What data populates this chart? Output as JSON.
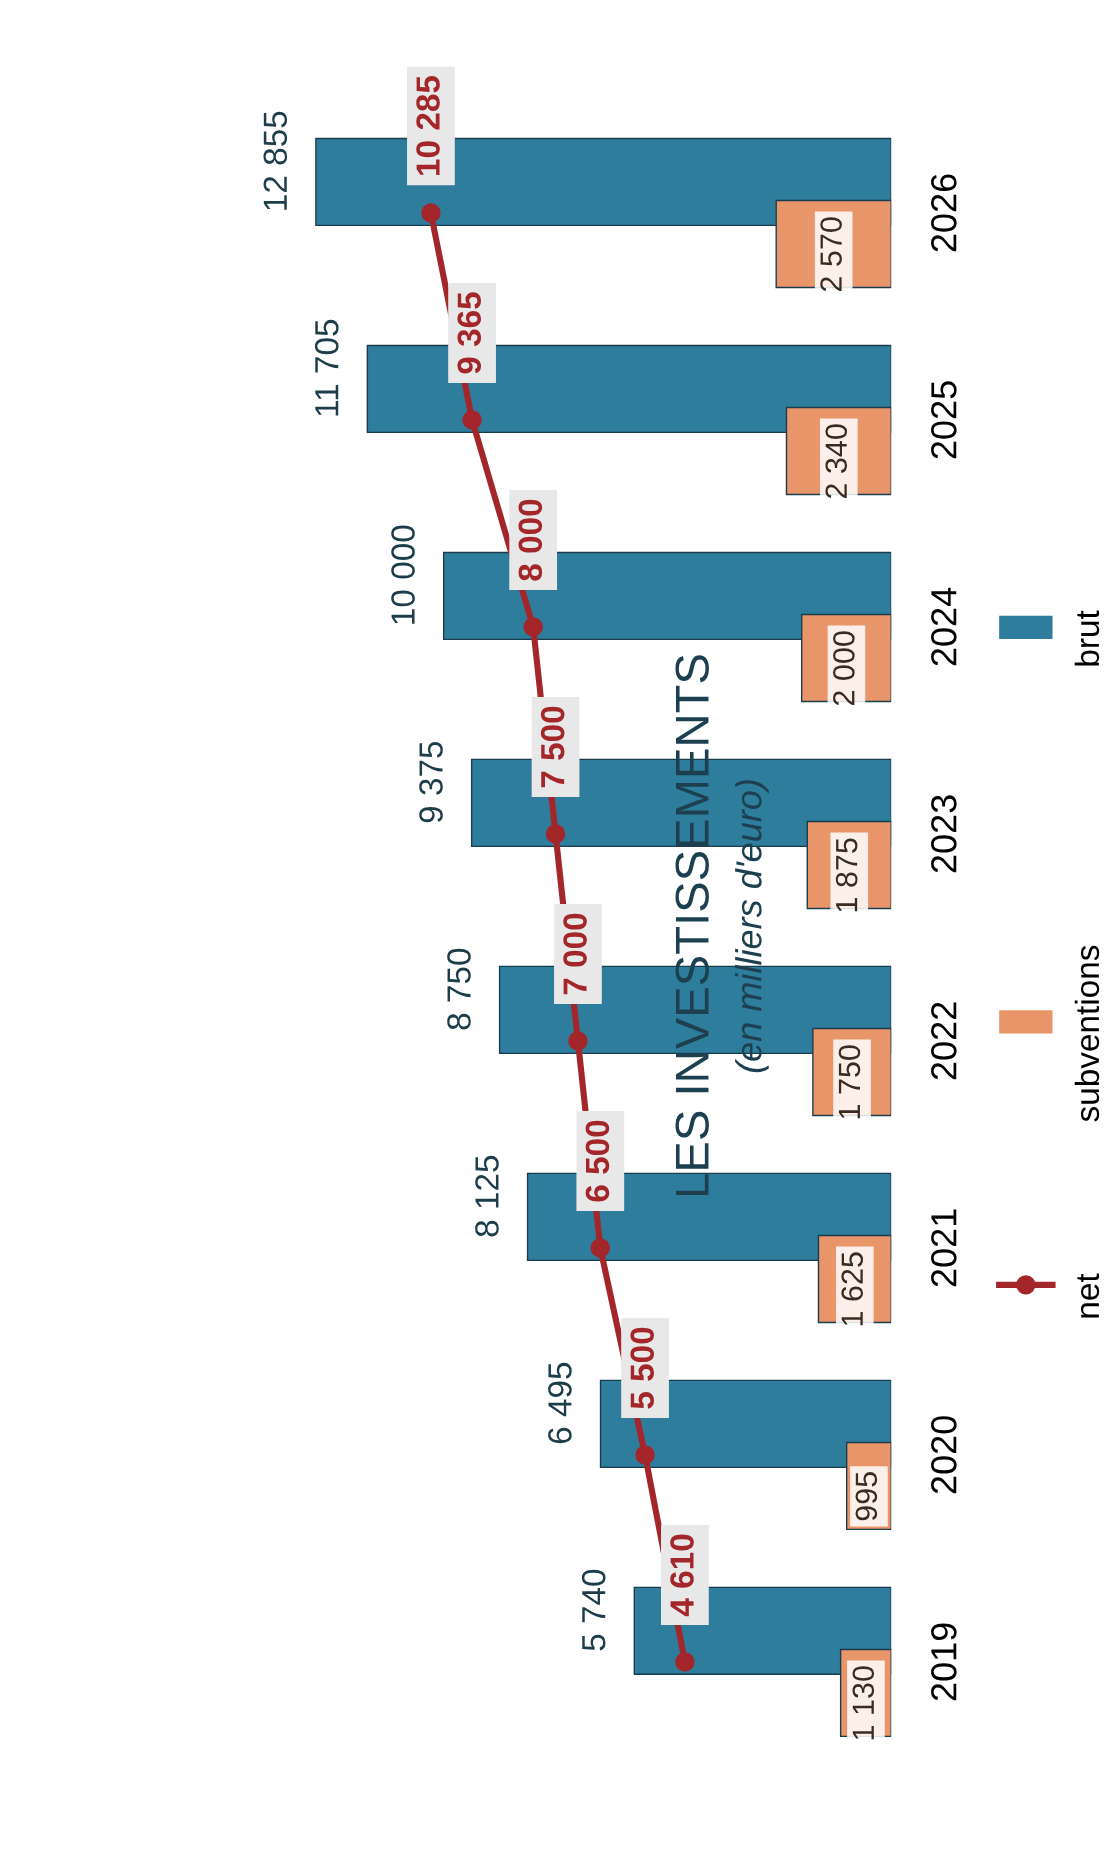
{
  "chart_data": {
    "type": "bar",
    "orientation": "horizontal",
    "title": "LES INVESTISSEMENTS",
    "subtitle": "(en milliers d'euro)",
    "categories": [
      "2026",
      "2025",
      "2024",
      "2023",
      "2022",
      "2021",
      "2020",
      "2019"
    ],
    "tick_labels": "y",
    "grid": false,
    "legend": "bottom right",
    "series": [
      {
        "name": "brut",
        "color": "#2e7d9c",
        "values": [
          12855,
          11705,
          10000,
          9375,
          8750,
          8125,
          6495,
          5740
        ],
        "value_labels": [
          "12 855",
          "11 705",
          "10 000",
          "9 375",
          "8 750",
          "8 125",
          "6 495",
          "5 740"
        ]
      },
      {
        "name": "subventions",
        "color": "#e8956a",
        "values": [
          2570,
          2340,
          2000,
          1875,
          1750,
          1625,
          995,
          1130
        ],
        "value_labels": [
          "2 570",
          "2 340",
          "2 000",
          "1 875",
          "1 750",
          "1 625",
          "995",
          "1 130"
        ]
      },
      {
        "name": "net",
        "type": "line",
        "marker": "circle",
        "color": "#a3262a",
        "values": [
          10285,
          9365,
          8000,
          7500,
          7000,
          6500,
          5500,
          4610
        ],
        "value_labels": [
          "10 285",
          "9 365",
          "8 000",
          "7 500",
          "7 000",
          "6 500",
          "5 500",
          "4 610"
        ]
      }
    ]
  }
}
